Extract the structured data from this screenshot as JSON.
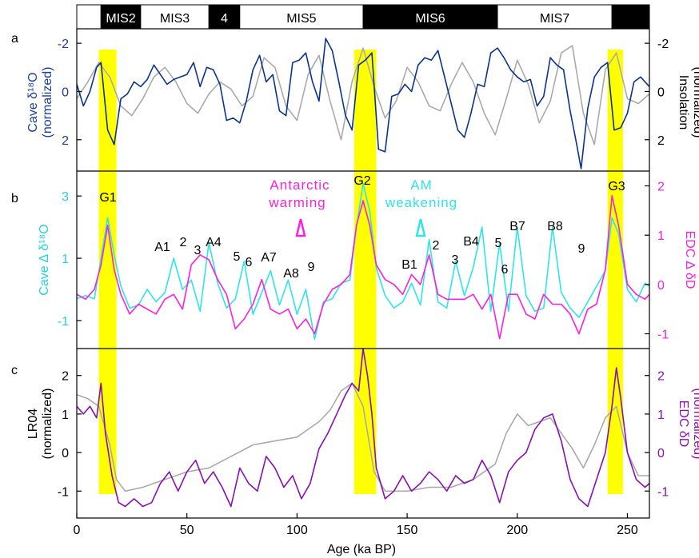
{
  "colors": {
    "cave": "#0b3391",
    "insolation": "#aaaaaa",
    "cave_delta": "#2de6ea",
    "edc_delta": "#ff1fe0",
    "lr04": "#aaaaaa",
    "edc": "#8a0fb5",
    "highlight": "#ffff00"
  },
  "chart_data": [
    {
      "type": "table",
      "name": "mis_bar",
      "segments": [
        {
          "label": "",
          "from": 0,
          "to": 11,
          "fill": "white"
        },
        {
          "label": "MIS2",
          "from": 11,
          "to": 29,
          "fill": "black"
        },
        {
          "label": "MIS3",
          "from": 29,
          "to": 60,
          "fill": "white"
        },
        {
          "label": "4",
          "from": 60,
          "to": 74,
          "fill": "black"
        },
        {
          "label": "MIS5",
          "from": 74,
          "to": 130,
          "fill": "white"
        },
        {
          "label": "MIS6",
          "from": 130,
          "to": 191,
          "fill": "black"
        },
        {
          "label": "MIS7",
          "from": 191,
          "to": 243,
          "fill": "white"
        },
        {
          "label": "",
          "from": 243,
          "to": 260,
          "fill": "black"
        }
      ]
    },
    {
      "type": "line",
      "panel": "a",
      "ylabel_left": [
        "Cave δ¹⁸O",
        "(normalized)"
      ],
      "ylabel_right": [
        "Insolation",
        "(normalized)"
      ],
      "xlim": [
        0,
        260
      ],
      "ylim": [
        3.3,
        -2.6
      ],
      "yticks_left": [
        "-2",
        "0",
        "2"
      ],
      "yticks_right": [
        "-2",
        "0",
        "2"
      ],
      "series": [
        {
          "key": "insolation",
          "x": [
            0,
            5,
            10,
            15,
            20,
            25,
            30,
            35,
            40,
            45,
            50,
            55,
            60,
            65,
            70,
            75,
            80,
            85,
            90,
            95,
            100,
            105,
            110,
            115,
            120,
            125,
            130,
            135,
            140,
            145,
            150,
            155,
            160,
            165,
            170,
            175,
            180,
            185,
            190,
            195,
            200,
            205,
            210,
            215,
            220,
            225,
            230,
            235,
            240,
            245,
            250,
            255,
            260
          ],
          "values": [
            0.3,
            -0.4,
            -1.2,
            -0.6,
            0.6,
            1.0,
            0.3,
            -0.6,
            -1.0,
            -0.4,
            0.5,
            0.9,
            0.1,
            -0.4,
            -0.1,
            0.6,
            0.2,
            -1.4,
            -1.0,
            0.6,
            1.2,
            -0.7,
            -1.5,
            0.4,
            2.0,
            -0.4,
            -1.8,
            -0.2,
            1.1,
            0.4,
            -1.0,
            -0.4,
            0.6,
            0.8,
            -0.3,
            -1.2,
            -0.4,
            0.9,
            1.8,
            0.3,
            -1.3,
            -0.3,
            1.3,
            0.4,
            -1.6,
            -1.9,
            0.9,
            2.2,
            -0.9,
            -1.6,
            0.3,
            0.5,
            0.1
          ]
        },
        {
          "key": "cave",
          "x": [
            0,
            3,
            6,
            9,
            11,
            14,
            17,
            20,
            23,
            26,
            29,
            32,
            35,
            38,
            41,
            44,
            47,
            50,
            53,
            56,
            59,
            62,
            65,
            68,
            71,
            74,
            77,
            80,
            83,
            86,
            89,
            92,
            95,
            98,
            101,
            104,
            107,
            110,
            113,
            116,
            119,
            122,
            125,
            128,
            131,
            134,
            137,
            140,
            143,
            146,
            149,
            152,
            155,
            158,
            161,
            164,
            167,
            170,
            173,
            176,
            179,
            182,
            185,
            188,
            191,
            194,
            197,
            200,
            203,
            206,
            209,
            212,
            215,
            218,
            221,
            224,
            227,
            229,
            232,
            235,
            238,
            241,
            244,
            247,
            250,
            253,
            256,
            260
          ],
          "values": [
            -0.3,
            0.6,
            0.0,
            -1.0,
            -1.2,
            1.6,
            2.2,
            0.3,
            0.1,
            -0.4,
            -0.2,
            -0.5,
            -1.1,
            -0.7,
            -0.3,
            -0.5,
            -0.6,
            -0.7,
            -1.2,
            -0.2,
            -1.0,
            -0.9,
            -0.3,
            1.2,
            1.1,
            1.3,
            0.4,
            -0.9,
            -1.5,
            -0.4,
            -0.7,
            0.8,
            1.0,
            -1.2,
            -1.3,
            -1.6,
            -0.4,
            0.4,
            -2.2,
            -1.7,
            -0.4,
            1.0,
            1.6,
            -1.1,
            -1.3,
            -1.6,
            2.4,
            2.5,
            0.2,
            0.1,
            -0.3,
            0.0,
            -1.1,
            -1.4,
            -1.3,
            -1.7,
            -0.6,
            0.5,
            1.6,
            1.9,
            0.9,
            -0.3,
            -0.2,
            -1.6,
            -1.8,
            -1.4,
            -0.9,
            -0.6,
            -0.4,
            -0.5,
            0.6,
            0.2,
            -1.4,
            -1.1,
            -0.9,
            0.8,
            2.2,
            3.2,
            0.7,
            -0.6,
            -1.0,
            -1.2,
            1.6,
            1.5,
            0.9,
            -0.4,
            -0.6,
            -0.2
          ]
        }
      ]
    },
    {
      "type": "line",
      "panel": "b",
      "ylabel_left": [
        "Cave ∆ δ¹⁸O"
      ],
      "ylabel_right": [
        "EDC ∆ δD"
      ],
      "xlim": [
        0,
        260
      ],
      "ylim_left": [
        -1.9,
        3.8
      ],
      "ylim_right": [
        -1.3,
        2.3
      ],
      "yticks_left": [
        "-1",
        "1",
        "3"
      ],
      "yticks_right": [
        "-1",
        "0",
        "1",
        "2"
      ],
      "series": [
        {
          "key": "cave_delta",
          "x": [
            0,
            4,
            8,
            11,
            14,
            17,
            20,
            24,
            28,
            32,
            36,
            40,
            44,
            48,
            52,
            56,
            60,
            64,
            68,
            72,
            76,
            80,
            84,
            88,
            92,
            96,
            100,
            104,
            108,
            112,
            116,
            120,
            124,
            127,
            130,
            133,
            136,
            140,
            144,
            148,
            152,
            156,
            160,
            164,
            168,
            172,
            176,
            180,
            184,
            188,
            192,
            196,
            200,
            204,
            208,
            212,
            216,
            220,
            224,
            228,
            232,
            236,
            240,
            243,
            246,
            250,
            254,
            258,
            260
          ],
          "values": [
            -0.3,
            -0.2,
            -0.3,
            1.0,
            2.3,
            1.1,
            0.1,
            -0.6,
            -0.5,
            0.0,
            -0.4,
            -0.1,
            1.0,
            0.0,
            0.3,
            -0.7,
            1.5,
            0.2,
            -0.6,
            -0.3,
            0.9,
            -0.8,
            -0.1,
            0.6,
            -0.5,
            0.3,
            -0.8,
            0.0,
            -1.6,
            -0.4,
            -0.3,
            0.2,
            0.3,
            2.0,
            3.4,
            2.5,
            0.7,
            -0.2,
            -0.6,
            -0.4,
            0.2,
            -0.5,
            1.6,
            -0.4,
            -0.6,
            0.9,
            -0.2,
            0.7,
            2.0,
            -0.7,
            1.5,
            -0.7,
            2.0,
            -0.2,
            -0.7,
            -0.6,
            2.0,
            -0.1,
            -0.6,
            -0.9,
            -0.4,
            0.1,
            0.6,
            2.3,
            1.8,
            0.0,
            -0.4,
            0.2,
            0.1
          ]
        },
        {
          "key": "edc_delta",
          "x": [
            0,
            4,
            8,
            11,
            14,
            17,
            20,
            24,
            28,
            32,
            36,
            40,
            44,
            48,
            52,
            56,
            60,
            64,
            68,
            72,
            76,
            80,
            84,
            88,
            92,
            96,
            100,
            104,
            108,
            112,
            116,
            120,
            124,
            127,
            130,
            133,
            136,
            140,
            144,
            148,
            152,
            156,
            160,
            164,
            168,
            172,
            176,
            180,
            184,
            188,
            192,
            196,
            200,
            204,
            208,
            212,
            216,
            220,
            224,
            228,
            232,
            236,
            240,
            243,
            246,
            250,
            254,
            258,
            260
          ],
          "values": [
            -0.2,
            -0.3,
            -0.1,
            0.4,
            1.2,
            0.3,
            -0.2,
            -0.6,
            -0.4,
            -0.5,
            -0.6,
            -0.3,
            -0.2,
            -0.5,
            0.4,
            0.6,
            0.5,
            0.1,
            -0.2,
            -0.9,
            -0.7,
            -0.4,
            0.1,
            -0.5,
            -0.6,
            -0.5,
            -0.9,
            -0.7,
            -1.0,
            -0.4,
            -0.1,
            0.0,
            0.2,
            1.2,
            1.7,
            1.2,
            0.4,
            0.1,
            0.0,
            -0.2,
            0.2,
            0.0,
            0.6,
            -0.2,
            -0.3,
            -0.3,
            -0.3,
            -0.2,
            -0.5,
            -0.2,
            -1.1,
            -0.2,
            -0.2,
            -0.6,
            -0.7,
            -0.2,
            -0.4,
            -0.4,
            -0.6,
            -1.0,
            -0.5,
            -0.4,
            0.3,
            1.8,
            1.2,
            0.0,
            -0.2,
            -0.3,
            -0.2
          ]
        }
      ],
      "annotations": {
        "G1": "G1",
        "G2": "G2",
        "G3": "G3",
        "A": [
          "A1",
          "2",
          "3",
          "A4",
          "5",
          "6",
          "A7",
          "A8",
          "9"
        ],
        "B": [
          "B1",
          "2",
          "3",
          "B4",
          "5",
          "6",
          "B7",
          "B8",
          "9"
        ],
        "warming_1": "Antarctic",
        "warming_2": "warming",
        "weak_1": "AM",
        "weak_2": "weakening"
      }
    },
    {
      "type": "line",
      "panel": "c",
      "ylabel_left": [
        "LR04",
        "(normalized)"
      ],
      "ylabel_right": [
        "EDC  δD",
        "(normalized)"
      ],
      "xlabel": "Age  (ka BP)",
      "xlim": [
        0,
        260
      ],
      "ylim": [
        -1.7,
        2.7
      ],
      "xticks": [
        "0",
        "50",
        "100",
        "150",
        "200",
        "250"
      ],
      "yticks_left": [
        "-1",
        "0",
        "1",
        "2"
      ],
      "yticks_right": [
        "-1",
        "0",
        "1",
        "2"
      ],
      "series": [
        {
          "key": "lr04",
          "x": [
            0,
            5,
            10,
            15,
            18,
            22,
            30,
            40,
            50,
            60,
            70,
            80,
            90,
            100,
            110,
            115,
            120,
            125,
            130,
            135,
            140,
            150,
            160,
            170,
            180,
            190,
            195,
            200,
            205,
            210,
            215,
            220,
            225,
            230,
            235,
            240,
            245,
            250,
            255,
            260
          ],
          "values": [
            1.5,
            1.4,
            1.2,
            0.2,
            -0.7,
            -1.0,
            -0.9,
            -0.7,
            -0.5,
            -0.4,
            -0.1,
            0.2,
            0.3,
            0.4,
            0.8,
            1.1,
            1.6,
            1.8,
            1.2,
            -0.5,
            -1.0,
            -1.0,
            -0.9,
            -0.9,
            -0.7,
            -0.3,
            0.5,
            1.0,
            0.7,
            0.8,
            0.9,
            0.5,
            0.1,
            -0.4,
            0.2,
            0.9,
            1.2,
            0.0,
            -0.6,
            -0.6
          ]
        },
        {
          "key": "edc",
          "x": [
            0,
            3,
            6,
            9,
            11,
            13,
            16,
            19,
            22,
            26,
            30,
            34,
            38,
            42,
            46,
            50,
            54,
            58,
            62,
            66,
            70,
            74,
            78,
            82,
            86,
            90,
            94,
            98,
            102,
            106,
            110,
            114,
            118,
            122,
            125,
            128,
            130,
            132,
            134,
            136,
            140,
            144,
            148,
            152,
            156,
            160,
            164,
            168,
            172,
            176,
            180,
            184,
            188,
            192,
            196,
            200,
            204,
            208,
            212,
            216,
            220,
            224,
            228,
            232,
            236,
            240,
            243,
            245,
            247,
            250,
            254,
            258,
            260
          ],
          "values": [
            1.2,
            1.0,
            1.2,
            0.9,
            1.8,
            0.5,
            -0.6,
            -1.3,
            -1.4,
            -1.2,
            -1.4,
            -1.3,
            -0.8,
            -0.5,
            -1.0,
            -0.5,
            -0.2,
            -0.8,
            -0.5,
            -0.9,
            -1.4,
            -0.4,
            -0.8,
            -1.0,
            -0.1,
            -0.4,
            -0.9,
            -0.6,
            -1.2,
            -0.8,
            0.1,
            0.5,
            1.0,
            1.5,
            1.8,
            1.6,
            2.7,
            2.0,
            1.0,
            -0.4,
            -1.2,
            -1.0,
            -0.6,
            -1.0,
            -0.8,
            -0.5,
            -0.7,
            -1.0,
            -0.6,
            -0.8,
            -0.7,
            -0.2,
            -0.6,
            -1.3,
            -0.5,
            -0.2,
            0.0,
            0.6,
            0.9,
            1.0,
            0.3,
            -0.7,
            -1.2,
            -1.4,
            -0.7,
            0.0,
            1.2,
            2.2,
            1.4,
            0.0,
            -0.7,
            -0.9,
            -0.8
          ]
        }
      ]
    }
  ],
  "panels": {
    "a": "a",
    "b": "b",
    "c": "c"
  }
}
